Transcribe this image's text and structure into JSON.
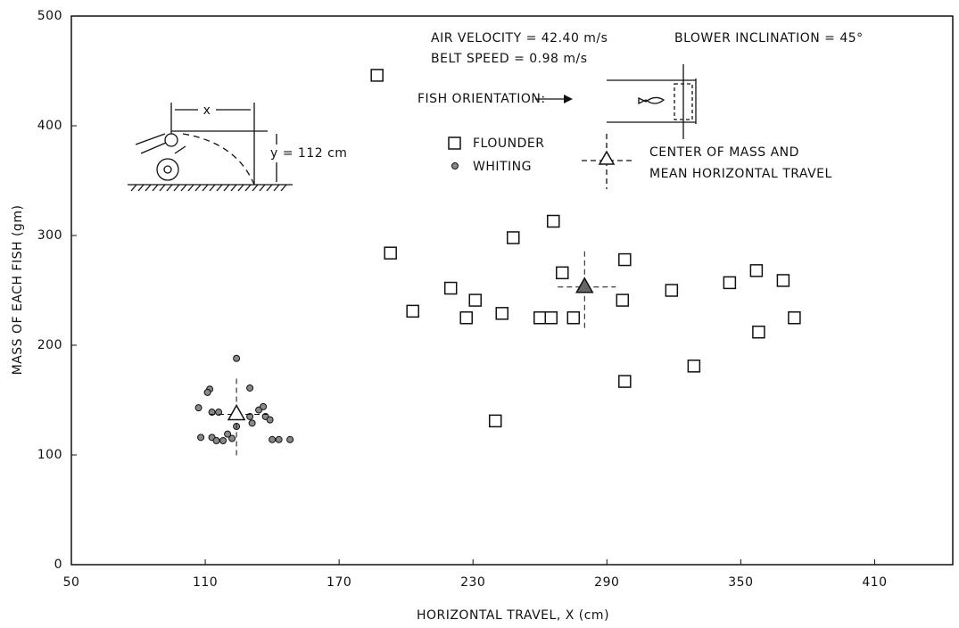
{
  "chart_data": {
    "type": "scatter",
    "x_label": "HORIZONTAL TRAVEL, X (cm)",
    "y_label": "MASS OF EACH FISH (gm)",
    "xlim": [
      50,
      445
    ],
    "xticks": [
      50,
      110,
      170,
      230,
      290,
      350,
      410
    ],
    "ylim": [
      0,
      500
    ],
    "yticks": [
      0,
      100,
      200,
      300,
      400,
      500
    ],
    "grid": false,
    "series": [
      {
        "name": "FLOUNDER",
        "marker": "square",
        "color": "#111111",
        "x": [
          187,
          193,
          203,
          220,
          227,
          231,
          243,
          248,
          240,
          260,
          266,
          265,
          270,
          275,
          298,
          297,
          298,
          319,
          329,
          345,
          357,
          358,
          369,
          374
        ],
        "values": [
          446,
          284,
          231,
          252,
          225,
          241,
          229,
          298,
          131,
          225,
          313,
          225,
          266,
          225,
          278,
          241,
          167,
          250,
          181,
          257,
          268,
          212,
          259,
          225
        ]
      },
      {
        "name": "WHITING",
        "marker": "dot",
        "color": "#111111",
        "x": [
          124,
          130,
          112,
          111,
          107,
          113,
          116,
          134,
          136,
          130,
          137,
          131,
          124,
          139,
          108,
          113,
          115,
          118,
          120,
          122,
          140,
          143,
          148
        ],
        "values": [
          188,
          161,
          160,
          157,
          143,
          139,
          139,
          141,
          144,
          135,
          135,
          129,
          126,
          132,
          116,
          116,
          113,
          113,
          119,
          115,
          114,
          114,
          114
        ]
      }
    ],
    "center_of_mass": {
      "label": [
        "CENTER OF MASS AND",
        "MEAN HORIZONTAL TRAVEL"
      ],
      "x": [
        280,
        124
      ],
      "values": [
        253,
        137
      ],
      "fills": [
        "#666666",
        "#ffffff"
      ]
    },
    "annotations": [
      "AIR VELOCITY = 42.40 m/s",
      "BLOWER INCLINATION = 45°",
      "BELT SPEED = 0.98 m/s",
      "FISH ORIENTATION:",
      "x",
      "y = 112 cm"
    ]
  }
}
